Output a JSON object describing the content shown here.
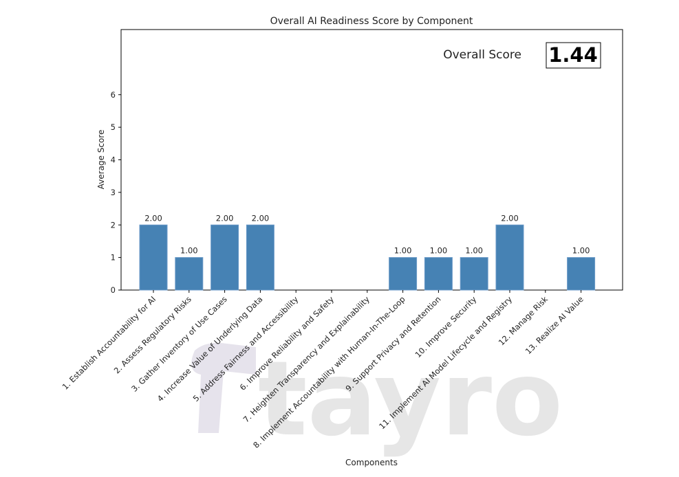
{
  "chart_data": {
    "type": "bar",
    "title": "Overall AI Readiness Score by Component",
    "xlabel": "Components",
    "ylabel": "Average Score",
    "ylim": [
      0,
      8
    ],
    "yticks": [
      0,
      1,
      2,
      3,
      4,
      5,
      6
    ],
    "categories": [
      "1. Establish Accountability for AI",
      "2. Assess Regulatory Risks",
      "3. Gather Inventory of Use Cases",
      "4. Increase Value of Underlying Data",
      "5. Address Fairness and Accessibility",
      "6. Improve Reliability and Safety",
      "7. Heighten Transparency and Explainability",
      "8. Implement Accountability with Human-In-The-Loop",
      "9. Support Privacy and Retention",
      "10. Improve Security",
      "11. Implement AI Model Lifecycle and Registry",
      "12. Manage Risk",
      "13. Realize AI Value"
    ],
    "values": [
      2,
      1,
      2,
      2,
      0,
      0,
      0,
      1,
      1,
      1,
      2,
      0,
      1
    ],
    "data_labels": [
      "2.00",
      "1.00",
      "2.00",
      "2.00",
      "",
      "",
      "",
      "1.00",
      "1.00",
      "1.00",
      "2.00",
      "",
      "1.00"
    ],
    "bar_color": "#4682b4",
    "grid": false,
    "overall_score": {
      "label": "Overall Score",
      "value": "1.44"
    }
  },
  "watermark": {
    "text": "tayro",
    "color": "#e6e6e6"
  }
}
